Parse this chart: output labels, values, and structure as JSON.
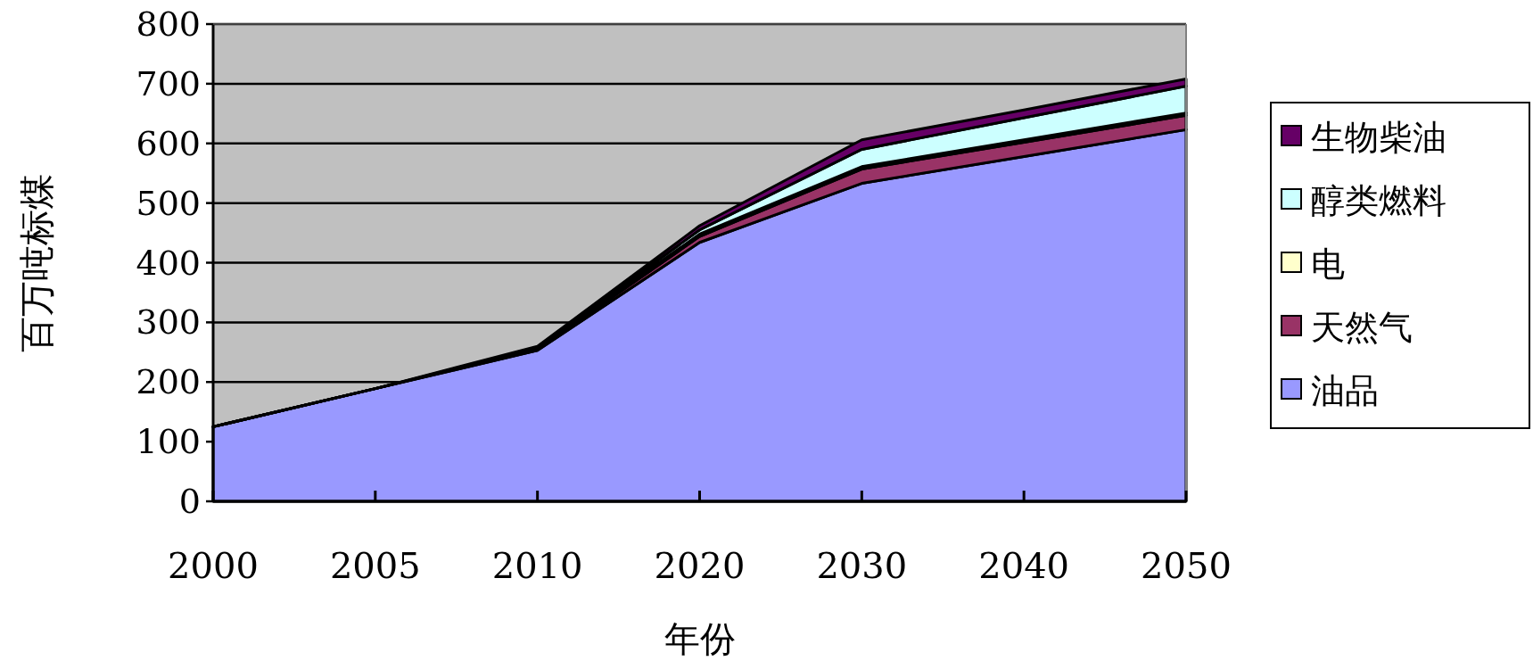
{
  "chart_data": {
    "type": "area",
    "stacked": true,
    "xlabel": "年份",
    "ylabel": "百万吨标煤",
    "categories": [
      "2000",
      "2005",
      "2010",
      "2020",
      "2030",
      "2040",
      "2050"
    ],
    "ylim": [
      0,
      800
    ],
    "yticks": [
      0,
      100,
      200,
      300,
      400,
      500,
      600,
      700,
      800
    ],
    "grid": "y",
    "legend": "right",
    "series": [
      {
        "name": "油品",
        "color": "#9999ff",
        "values": [
          125,
          189,
          253,
          434,
          533,
          578,
          623
        ]
      },
      {
        "name": "天然气",
        "color": "#993366",
        "values": [
          0,
          0,
          2,
          10,
          24,
          24,
          24
        ]
      },
      {
        "name": "电",
        "color": "#ffffcc",
        "values": [
          0,
          0,
          1,
          4,
          4,
          4,
          4
        ]
      },
      {
        "name": "醇类燃料",
        "color": "#ccffff",
        "values": [
          0,
          0,
          2,
          7,
          29,
          37,
          45
        ]
      },
      {
        "name": "生物柴油",
        "color": "#660066",
        "values": [
          0,
          0,
          2,
          7,
          16,
          13,
          12
        ]
      }
    ]
  }
}
